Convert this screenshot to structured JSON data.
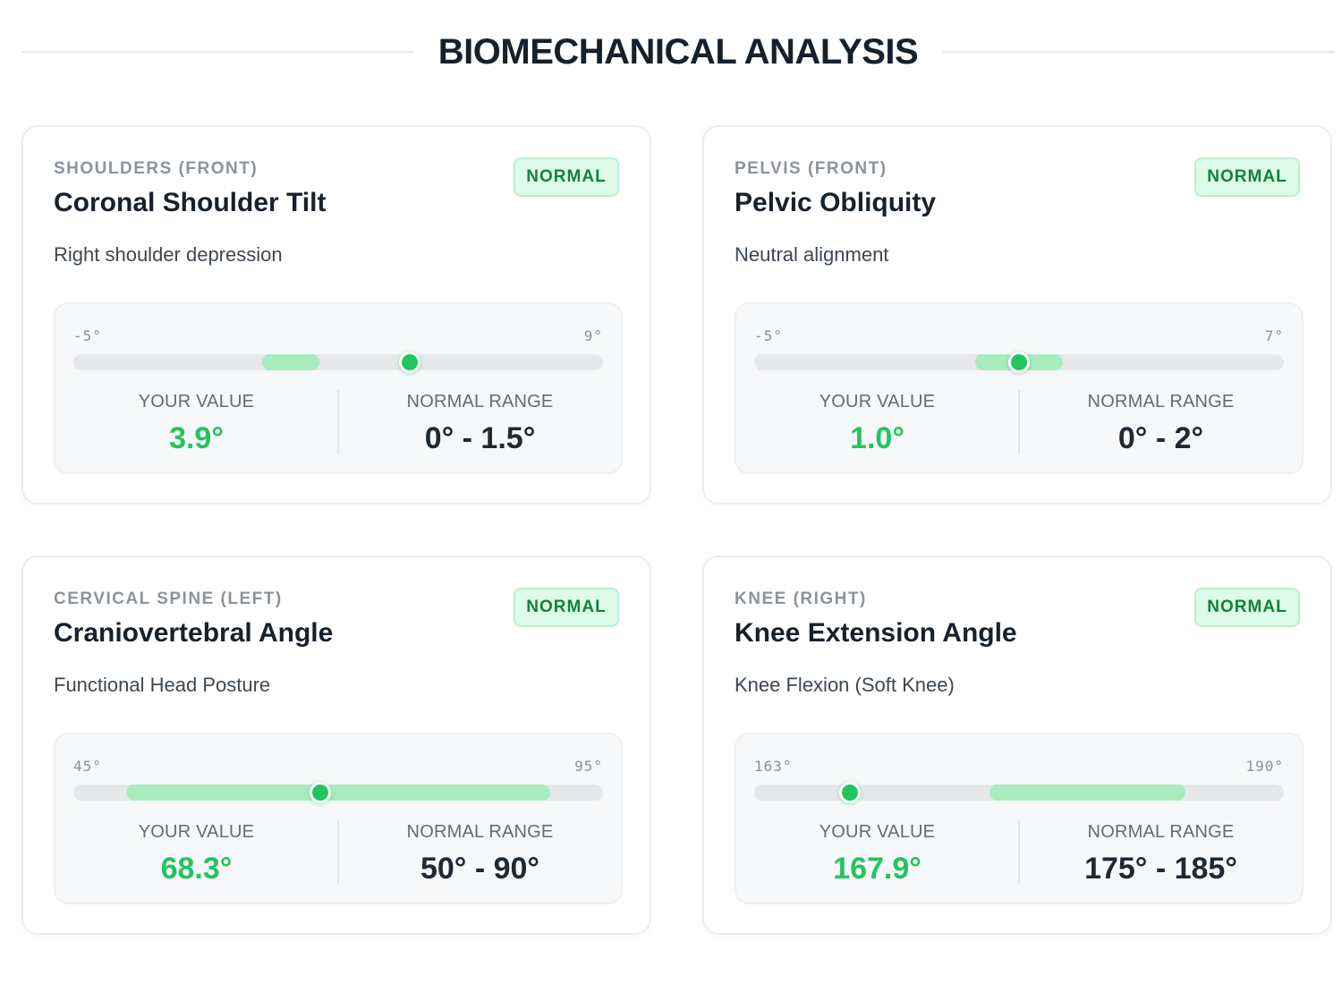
{
  "header": {
    "title": "BIOMECHANICAL ANALYSIS"
  },
  "colors": {
    "accent": "#22c55e",
    "range": "#a7ebbf",
    "badge_bg": "#dcfce7",
    "badge_text": "#15803d"
  },
  "cards": [
    {
      "category": "SHOULDERS (FRONT)",
      "title": "Coronal Shoulder Tilt",
      "description": "Right shoulder depression",
      "status": "NORMAL",
      "scale_min_label": "-5°",
      "scale_max_label": "9°",
      "scale_min": -5,
      "scale_max": 9,
      "your_value_label": "YOUR VALUE",
      "your_value": "3.9°",
      "value": 3.9,
      "normal_range_label": "NORMAL RANGE",
      "normal_range": "0° - 1.5°",
      "range_min": 0,
      "range_max": 1.5
    },
    {
      "category": "PELVIS (FRONT)",
      "title": "Pelvic Obliquity",
      "description": "Neutral alignment",
      "status": "NORMAL",
      "scale_min_label": "-5°",
      "scale_max_label": "7°",
      "scale_min": -5,
      "scale_max": 7,
      "your_value_label": "YOUR VALUE",
      "your_value": "1.0°",
      "value": 1.0,
      "normal_range_label": "NORMAL RANGE",
      "normal_range": "0° - 2°",
      "range_min": 0,
      "range_max": 2
    },
    {
      "category": "CERVICAL SPINE (LEFT)",
      "title": "Craniovertebral Angle",
      "description": "Functional Head Posture",
      "status": "NORMAL",
      "scale_min_label": "45°",
      "scale_max_label": "95°",
      "scale_min": 45,
      "scale_max": 95,
      "your_value_label": "YOUR VALUE",
      "your_value": "68.3°",
      "value": 68.3,
      "normal_range_label": "NORMAL RANGE",
      "normal_range": "50° - 90°",
      "range_min": 50,
      "range_max": 90
    },
    {
      "category": "KNEE (RIGHT)",
      "title": "Knee Extension Angle",
      "description": "Knee Flexion (Soft Knee)",
      "status": "NORMAL",
      "scale_min_label": "163°",
      "scale_max_label": "190°",
      "scale_min": 163,
      "scale_max": 190,
      "your_value_label": "YOUR VALUE",
      "your_value": "167.9°",
      "value": 167.9,
      "normal_range_label": "NORMAL RANGE",
      "normal_range": "175° - 185°",
      "range_min": 175,
      "range_max": 185
    }
  ]
}
